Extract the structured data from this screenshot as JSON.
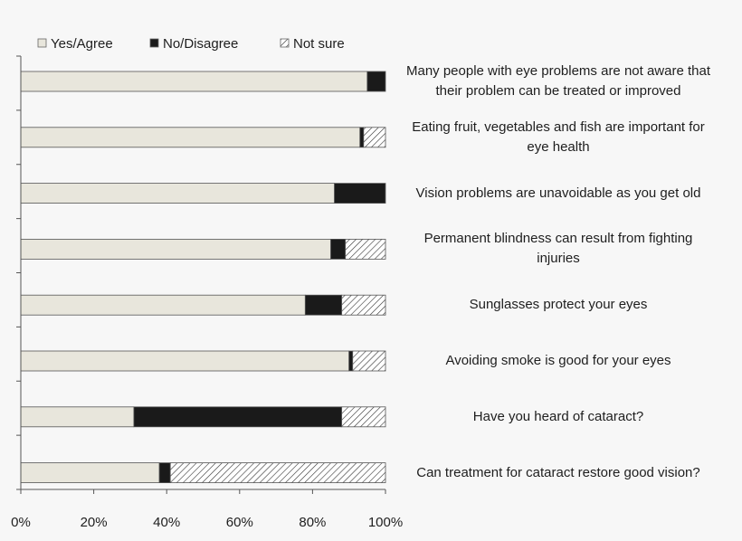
{
  "chart_data": {
    "type": "bar",
    "orientation": "horizontal",
    "stacked": true,
    "percent": true,
    "categories": [
      "Many people with eye problems are not aware that\ntheir problem can be treated or improved",
      "Eating fruit, vegetables and fish are important for\neye health",
      "Vision problems are unavoidable as you get old",
      "Permanent blindness can result from fighting\ninjuries",
      "Sunglasses protect your eyes",
      "Avoiding smoke is good for your eyes",
      "Have you heard of cataract?",
      "Can treatment for cataract restore good vision?"
    ],
    "series": [
      {
        "name": "Yes/Agree",
        "color": "#e8e6dc",
        "pattern": "solid",
        "values": [
          95,
          93,
          86,
          85,
          78,
          90,
          31,
          38
        ]
      },
      {
        "name": "No/Disagree",
        "color": "#1a1a1a",
        "pattern": "solid",
        "values": [
          5,
          1,
          14,
          4,
          10,
          1,
          57,
          3
        ]
      },
      {
        "name": "Not sure",
        "color": "#ffffff",
        "pattern": "hatch",
        "values": [
          0,
          6,
          0,
          11,
          12,
          9,
          12,
          59
        ]
      }
    ],
    "xlim": [
      0,
      100
    ],
    "x_ticks": [
      "0%",
      "20%",
      "40%",
      "60%",
      "80%",
      "100%"
    ],
    "legend_position": "top-left",
    "grid": false
  }
}
